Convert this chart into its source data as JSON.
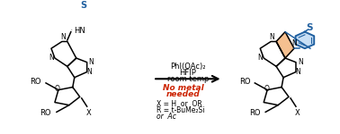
{
  "bg_color": "#ffffff",
  "black": "#000000",
  "blue": "#2060a0",
  "red": "#cc2200",
  "highlight": "#f5c090",
  "light_blue": "#c8dff5",
  "reagents": [
    "PhI(OAc)₂",
    "HFIP",
    "room temp"
  ],
  "no_metal": [
    "No metal",
    "needed"
  ],
  "conditions": [
    "X = H  or  OR",
    "R = t-BuMe₂Si",
    "or  Ac"
  ]
}
